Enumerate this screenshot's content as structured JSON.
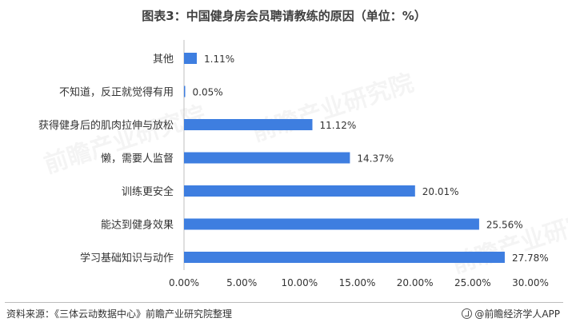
{
  "header": {
    "title": "图表3：中国健身房会员聘请教练的原因（单位：%）"
  },
  "chart_data": {
    "type": "bar",
    "orientation": "horizontal",
    "categories": [
      "其他",
      "不知道，反正就觉得有用",
      "获得健身后的肌肉拉伸与放松",
      "懒，需要人监督",
      "训练更安全",
      "能达到健身效果",
      "学习基础知识与动作"
    ],
    "values": [
      1.11,
      0.05,
      11.12,
      14.37,
      20.01,
      25.56,
      27.78
    ],
    "value_labels": [
      "1.11%",
      "0.05%",
      "11.12%",
      "14.37%",
      "20.01%",
      "25.56%",
      "27.78%"
    ],
    "xlim": [
      0,
      30
    ],
    "xticks": [
      0,
      5,
      10,
      15,
      20,
      25,
      30
    ],
    "xtick_labels": [
      "0.00%",
      "5.00%",
      "10.00%",
      "15.00%",
      "20.00%",
      "25.00%",
      "30.00%"
    ],
    "bar_color": "#3e7ee0",
    "grid": false,
    "legend": "none"
  },
  "footer": {
    "source": "资料来源：《三体云动数据中心》前瞻产业研究院整理",
    "brand": "@前瞻经济学人APP"
  },
  "watermark": {
    "text": "前瞻产业研究院"
  }
}
